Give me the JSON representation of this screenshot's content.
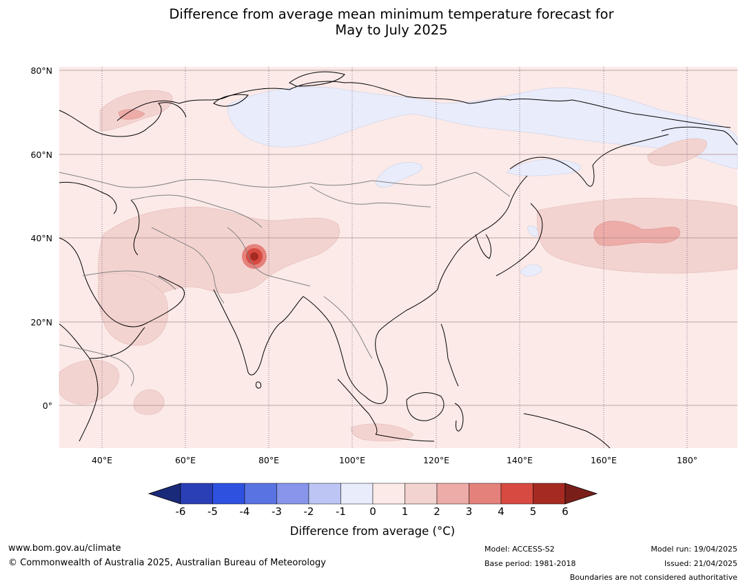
{
  "title_line1": "Difference from average mean minimum temperature forecast for",
  "title_line2": "May to July 2025",
  "map": {
    "lat_labels": [
      "80°N",
      "60°N",
      "40°N",
      "20°N",
      "0°"
    ],
    "lon_labels": [
      "40°E",
      "60°E",
      "80°E",
      "100°E",
      "120°E",
      "140°E",
      "160°E",
      "180°"
    ],
    "ocean_color": "#fbeae8",
    "land_color": "#fbeae8"
  },
  "colorbar": {
    "ticks": [
      "-6",
      "-5",
      "-4",
      "-3",
      "-2",
      "-1",
      "0",
      "1",
      "2",
      "3",
      "4",
      "5",
      "6"
    ],
    "colors": [
      "#1a2a7a",
      "#2a3fb5",
      "#2f51e0",
      "#5a73e3",
      "#8796eb",
      "#bcc5f3",
      "#e9ecfb",
      "#fbeae8",
      "#f3d3d0",
      "#edaca8",
      "#e5817b",
      "#d74a41",
      "#a52a22",
      "#7a1e1a"
    ],
    "label": "Difference from average (°C)"
  },
  "footer": {
    "url": "www.bom.gov.au/climate",
    "copyright": "© Commonwealth of Australia 2025, Australian Bureau of Meteorology",
    "model": "Model: ACCESS-S2",
    "base_period": "Base period: 1981-2018",
    "model_run": "Model run: 19/04/2025",
    "issued": "Issued: 21/04/2025",
    "disclaimer": "Boundaries are not considered authoritative"
  }
}
